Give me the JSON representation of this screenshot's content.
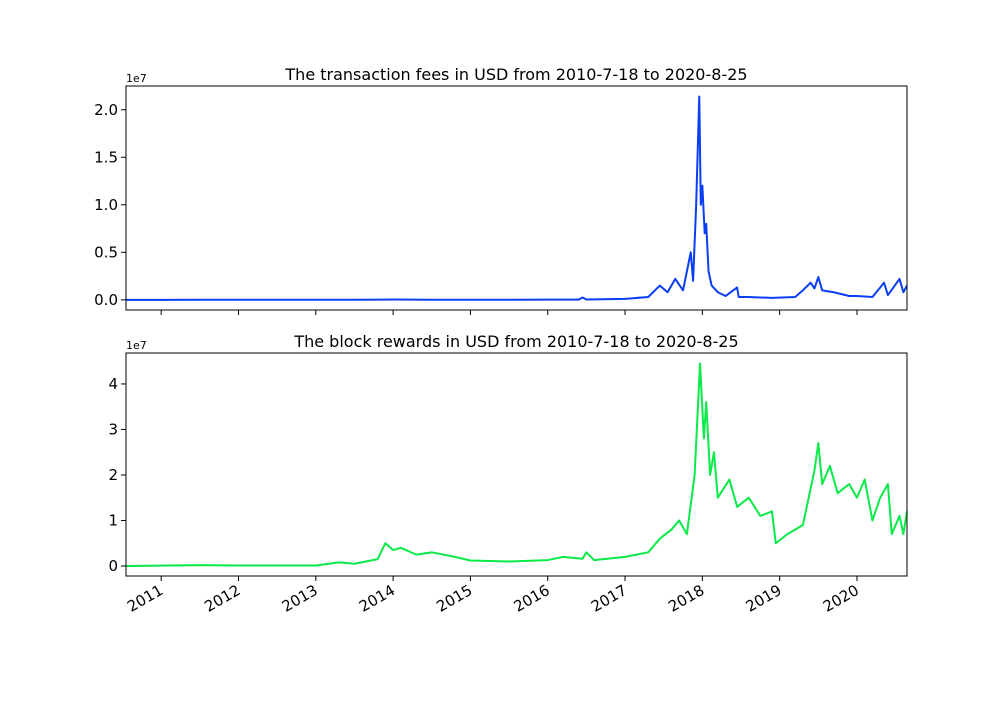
{
  "chart_data": [
    {
      "type": "line",
      "title": "The transaction fees in USD from 2010-7-18 to 2020-8-25",
      "x": [
        2010.545,
        2011.0,
        2011.5,
        2012.0,
        2012.5,
        2013.0,
        2013.5,
        2014.0,
        2014.5,
        2015.0,
        2015.5,
        2016.0,
        2016.4,
        2016.45,
        2016.5,
        2017.0,
        2017.3,
        2017.45,
        2017.55,
        2017.65,
        2017.75,
        2017.85,
        2017.88,
        2017.92,
        2017.96,
        2017.98,
        2018.0,
        2018.03,
        2018.05,
        2018.08,
        2018.12,
        2018.2,
        2018.3,
        2018.45,
        2018.47,
        2018.6,
        2018.9,
        2019.2,
        2019.3,
        2019.4,
        2019.45,
        2019.5,
        2019.55,
        2019.7,
        2019.9,
        2020.0,
        2020.2,
        2020.35,
        2020.4,
        2020.55,
        2020.6,
        2020.647
      ],
      "series": [
        {
          "name": "transaction fees",
          "color": "#0a3ef5",
          "values": [
            0,
            0,
            5000,
            3000,
            4000,
            5000,
            8000,
            30000,
            15000,
            10000,
            12000,
            20000,
            25000,
            250000,
            30000,
            100000,
            300000,
            1500000,
            800000,
            2200000,
            1000000,
            5000000,
            2000000,
            10000000,
            21400000,
            10000000,
            12000000,
            7000000,
            8000000,
            3000000,
            1500000,
            800000,
            400000,
            1300000,
            300000,
            300000,
            200000,
            300000,
            1000000,
            1800000,
            1200000,
            2400000,
            1000000,
            800000,
            400000,
            400000,
            300000,
            1800000,
            500000,
            2200000,
            800000,
            1500000
          ]
        }
      ],
      "xlim": [
        2010.545,
        2020.647
      ],
      "ylim": [
        -1070000,
        22500000
      ],
      "yticks": [
        {
          "value": 0,
          "label": "0.0"
        },
        {
          "value": 5000000,
          "label": "0.5"
        },
        {
          "value": 10000000,
          "label": "1.0"
        },
        {
          "value": 15000000,
          "label": "1.5"
        },
        {
          "value": 20000000,
          "label": "2.0"
        }
      ],
      "y_offset_label": "1e7"
    },
    {
      "type": "line",
      "title": "The block rewards in USD from 2010-7-18 to 2020-8-25",
      "x": [
        2010.545,
        2011.5,
        2012.0,
        2013.0,
        2013.3,
        2013.5,
        2013.8,
        2013.9,
        2014.0,
        2014.1,
        2014.3,
        2014.5,
        2014.8,
        2015.0,
        2015.5,
        2016.0,
        2016.2,
        2016.45,
        2016.5,
        2016.6,
        2017.0,
        2017.3,
        2017.45,
        2017.6,
        2017.7,
        2017.8,
        2017.9,
        2017.97,
        2018.02,
        2018.05,
        2018.1,
        2018.15,
        2018.2,
        2018.35,
        2018.45,
        2018.6,
        2018.75,
        2018.9,
        2018.95,
        2019.1,
        2019.3,
        2019.45,
        2019.5,
        2019.55,
        2019.65,
        2019.75,
        2019.9,
        2020.0,
        2020.1,
        2020.2,
        2020.3,
        2020.4,
        2020.45,
        2020.55,
        2020.6,
        2020.647
      ],
      "series": [
        {
          "name": "block rewards",
          "color": "#0aea48",
          "values": [
            0,
            200000,
            100000,
            100000,
            800000,
            500000,
            1500000,
            5000000,
            3500000,
            4000000,
            2500000,
            3000000,
            2000000,
            1200000,
            1000000,
            1300000,
            2000000,
            1600000,
            3000000,
            1300000,
            2000000,
            3000000,
            6000000,
            8000000,
            10000000,
            7000000,
            20000000,
            44500000,
            28000000,
            36000000,
            20000000,
            25000000,
            15000000,
            19000000,
            13000000,
            15000000,
            11000000,
            12000000,
            5000000,
            7000000,
            9000000,
            21000000,
            27000000,
            18000000,
            22000000,
            16000000,
            18000000,
            15000000,
            19000000,
            10000000,
            15000000,
            18000000,
            7000000,
            11000000,
            7000000,
            12000000
          ]
        }
      ],
      "xlim": [
        2010.545,
        2020.647
      ],
      "ylim": [
        -2200000,
        46800000
      ],
      "xticks": [
        2011,
        2012,
        2013,
        2014,
        2015,
        2016,
        2017,
        2018,
        2019,
        2020
      ],
      "yticks": [
        {
          "value": 0,
          "label": "0"
        },
        {
          "value": 10000000,
          "label": "1"
        },
        {
          "value": 20000000,
          "label": "2"
        },
        {
          "value": 30000000,
          "label": "3"
        },
        {
          "value": 40000000,
          "label": "4"
        }
      ],
      "y_offset_label": "1e7"
    }
  ]
}
